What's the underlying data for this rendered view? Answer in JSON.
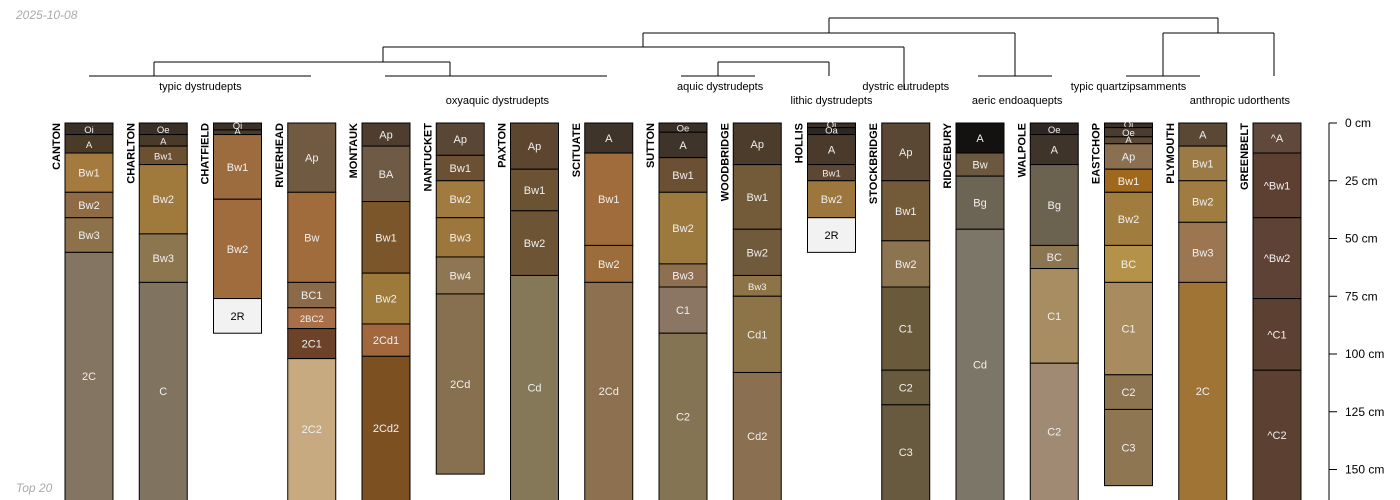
{
  "header": {
    "date": "2025-10-08"
  },
  "footer": {
    "label": "Top 20"
  },
  "colors": {
    "line": "#000000",
    "light_text": "#f0f0f0",
    "dark_text": "#000000"
  },
  "chart_data": {
    "type": "soil-profile-sketch",
    "depth_units": "cm",
    "depth_axis": {
      "max": 165,
      "ticks": [
        0,
        25,
        50,
        75,
        100,
        125,
        150
      ],
      "labels": [
        "0 cm",
        "25 cm",
        "50 cm",
        "75 cm",
        "100 cm",
        "125 cm",
        "150 cm"
      ]
    },
    "groups": [
      {
        "label": "typic dystrudepts",
        "profiles": [
          "CANTON",
          "CHARLTON",
          "CHATFIELD",
          "RIVERHEAD"
        ]
      },
      {
        "label": "oxyaquic dystrudepts",
        "profiles": [
          "MONTAUK",
          "NANTUCKET",
          "PAXTON",
          "SCITUATE"
        ]
      },
      {
        "label": "aquic dystrudepts",
        "profiles": [
          "SUTTON",
          "WOODBRIDGE"
        ]
      },
      {
        "label": "lithic dystrudepts",
        "profiles": [
          "HOLLIS"
        ]
      },
      {
        "label": "dystric eutrudepts",
        "profiles": [
          "STOCKBRIDGE"
        ]
      },
      {
        "label": "aeric endoaquepts",
        "profiles": [
          "RIDGEBURY",
          "WALPOLE"
        ]
      },
      {
        "label": "typic quartzipsamments",
        "profiles": [
          "EASTCHOP"
        ]
      },
      {
        "label": "anthropic udorthents",
        "profiles": [
          "PLYMOUTH",
          "GREENBELT"
        ]
      }
    ],
    "profiles": [
      {
        "name": "CANTON",
        "horizons": [
          {
            "name": "Oi",
            "top": 0,
            "bottom": 5,
            "color": "#3a3028"
          },
          {
            "name": "A",
            "top": 5,
            "bottom": 13,
            "color": "#4a3a28"
          },
          {
            "name": "Bw1",
            "top": 13,
            "bottom": 30,
            "color": "#a57a3e"
          },
          {
            "name": "Bw2",
            "top": 30,
            "bottom": 41,
            "color": "#8e6a45"
          },
          {
            "name": "Bw3",
            "top": 41,
            "bottom": 56,
            "color": "#8c714b"
          },
          {
            "name": "2C",
            "top": 56,
            "bottom": 165,
            "color": "#847462"
          }
        ]
      },
      {
        "name": "CHARLTON",
        "horizons": [
          {
            "name": "Oe",
            "top": 0,
            "bottom": 5,
            "color": "#3a3028"
          },
          {
            "name": "A",
            "top": 5,
            "bottom": 10,
            "color": "#4a3a28"
          },
          {
            "name": "Bw1",
            "top": 10,
            "bottom": 18,
            "color": "#6c5032"
          },
          {
            "name": "Bw2",
            "top": 18,
            "bottom": 48,
            "color": "#a07a3c"
          },
          {
            "name": "Bw3",
            "top": 48,
            "bottom": 69,
            "color": "#8c7650"
          },
          {
            "name": "C",
            "top": 69,
            "bottom": 165,
            "color": "#807460"
          }
        ]
      },
      {
        "name": "CHATFIELD",
        "horizons": [
          {
            "name": "Oi",
            "top": 0,
            "bottom": 3,
            "color": "#3a3028"
          },
          {
            "name": "A",
            "top": 3,
            "bottom": 5,
            "color": "#4a3a28"
          },
          {
            "name": "Bw1",
            "top": 5,
            "bottom": 33,
            "color": "#9c6c3e"
          },
          {
            "name": "Bw2",
            "top": 33,
            "bottom": 76,
            "color": "#a06c3e"
          },
          {
            "name": "2R",
            "top": 76,
            "bottom": 91,
            "color": "#f2f2f2"
          }
        ]
      },
      {
        "name": "RIVERHEAD",
        "horizons": [
          {
            "name": "Ap",
            "top": 0,
            "bottom": 30,
            "color": "#705a42"
          },
          {
            "name": "Bw",
            "top": 30,
            "bottom": 69,
            "color": "#a06c3c"
          },
          {
            "name": "BC1",
            "top": 69,
            "bottom": 80,
            "color": "#8a6a48"
          },
          {
            "name": "2BC2",
            "top": 80,
            "bottom": 89,
            "color": "#a87048"
          },
          {
            "name": "2C1",
            "top": 89,
            "bottom": 102,
            "color": "#6c4228"
          },
          {
            "name": "2C2",
            "top": 102,
            "bottom": 165,
            "color": "#c8aa80"
          }
        ]
      },
      {
        "name": "MONTAUK",
        "horizons": [
          {
            "name": "Ap",
            "top": 0,
            "bottom": 10,
            "color": "#4f3e30"
          },
          {
            "name": "BA",
            "top": 10,
            "bottom": 34,
            "color": "#6e5a45"
          },
          {
            "name": "Bw1",
            "top": 34,
            "bottom": 65,
            "color": "#7a562a"
          },
          {
            "name": "Bw2",
            "top": 65,
            "bottom": 87,
            "color": "#9e7a3a"
          },
          {
            "name": "2Cd1",
            "top": 87,
            "bottom": 101,
            "color": "#a0683c"
          },
          {
            "name": "2Cd2",
            "top": 101,
            "bottom": 165,
            "color": "#7c5020"
          }
        ]
      },
      {
        "name": "NANTUCKET",
        "horizons": [
          {
            "name": "Ap",
            "top": 0,
            "bottom": 14,
            "color": "#5a4634"
          },
          {
            "name": "Bw1",
            "top": 14,
            "bottom": 25,
            "color": "#6c5034"
          },
          {
            "name": "Bw2",
            "top": 25,
            "bottom": 41,
            "color": "#a07a3e"
          },
          {
            "name": "Bw3",
            "top": 41,
            "bottom": 58,
            "color": "#9c763a"
          },
          {
            "name": "Bw4",
            "top": 58,
            "bottom": 74,
            "color": "#8e7652"
          },
          {
            "name": "2Cd",
            "top": 74,
            "bottom": 152,
            "color": "#867050"
          }
        ]
      },
      {
        "name": "PAXTON",
        "horizons": [
          {
            "name": "Ap",
            "top": 0,
            "bottom": 20,
            "color": "#5c4630"
          },
          {
            "name": "Bw1",
            "top": 20,
            "bottom": 38,
            "color": "#6a5232"
          },
          {
            "name": "Bw2",
            "top": 38,
            "bottom": 66,
            "color": "#6c5434"
          },
          {
            "name": "Cd",
            "top": 66,
            "bottom": 165,
            "color": "#857858"
          }
        ]
      },
      {
        "name": "SCITUATE",
        "horizons": [
          {
            "name": "A",
            "top": 0,
            "bottom": 13,
            "color": "#3e342a"
          },
          {
            "name": "Bw1",
            "top": 13,
            "bottom": 53,
            "color": "#a06c3c"
          },
          {
            "name": "Bw2",
            "top": 53,
            "bottom": 69,
            "color": "#9c6c3a"
          },
          {
            "name": "2Cd",
            "top": 69,
            "bottom": 165,
            "color": "#8c7050"
          }
        ]
      },
      {
        "name": "SUTTON",
        "horizons": [
          {
            "name": "Oe",
            "top": 0,
            "bottom": 4,
            "color": "#3a3028"
          },
          {
            "name": "A",
            "top": 4,
            "bottom": 15,
            "color": "#3e342a"
          },
          {
            "name": "Bw1",
            "top": 15,
            "bottom": 30,
            "color": "#6c5034"
          },
          {
            "name": "Bw2",
            "top": 30,
            "bottom": 61,
            "color": "#9c7a3e"
          },
          {
            "name": "Bw3",
            "top": 61,
            "bottom": 71,
            "color": "#8e7050"
          },
          {
            "name": "C1",
            "top": 71,
            "bottom": 91,
            "color": "#8a7662"
          },
          {
            "name": "C2",
            "top": 91,
            "bottom": 165,
            "color": "#857454"
          }
        ]
      },
      {
        "name": "WOODBRIDGE",
        "horizons": [
          {
            "name": "Ap",
            "top": 0,
            "bottom": 18,
            "color": "#4c3c2c"
          },
          {
            "name": "Bw1",
            "top": 18,
            "bottom": 46,
            "color": "#735a38"
          },
          {
            "name": "Bw2",
            "top": 46,
            "bottom": 66,
            "color": "#705a3c"
          },
          {
            "name": "Bw3",
            "top": 66,
            "bottom": 75,
            "color": "#8c7448"
          },
          {
            "name": "Cd1",
            "top": 75,
            "bottom": 108,
            "color": "#8c7448"
          },
          {
            "name": "Cd2",
            "top": 108,
            "bottom": 165,
            "color": "#8a7050"
          }
        ]
      },
      {
        "name": "HOLLIS",
        "horizons": [
          {
            "name": "Oi",
            "top": 0,
            "bottom": 2,
            "color": "#3a3028"
          },
          {
            "name": "Oa",
            "top": 2,
            "bottom": 5,
            "color": "#2e2620"
          },
          {
            "name": "A",
            "top": 5,
            "bottom": 18,
            "color": "#4a3a2c"
          },
          {
            "name": "Bw1",
            "top": 18,
            "bottom": 25,
            "color": "#5c4634"
          },
          {
            "name": "Bw2",
            "top": 25,
            "bottom": 41,
            "color": "#9c763c"
          },
          {
            "name": "2R",
            "top": 41,
            "bottom": 56,
            "color": "#f2f2f2"
          }
        ]
      },
      {
        "name": "STOCKBRIDGE",
        "horizons": [
          {
            "name": "Ap",
            "top": 0,
            "bottom": 25,
            "color": "#5a4834"
          },
          {
            "name": "Bw1",
            "top": 25,
            "bottom": 51,
            "color": "#735a38"
          },
          {
            "name": "Bw2",
            "top": 51,
            "bottom": 71,
            "color": "#8c7450"
          },
          {
            "name": "C1",
            "top": 71,
            "bottom": 107,
            "color": "#6a5a3c"
          },
          {
            "name": "C2",
            "top": 107,
            "bottom": 122,
            "color": "#685a3c"
          },
          {
            "name": "C3",
            "top": 122,
            "bottom": 165,
            "color": "#685a3e"
          }
        ]
      },
      {
        "name": "RIDGEBURY",
        "horizons": [
          {
            "name": "A",
            "top": 0,
            "bottom": 13,
            "color": "#141210"
          },
          {
            "name": "Bw",
            "top": 13,
            "bottom": 23,
            "color": "#6c5840"
          },
          {
            "name": "Bg",
            "top": 23,
            "bottom": 46,
            "color": "#6c6454"
          },
          {
            "name": "Cd",
            "top": 46,
            "bottom": 165,
            "color": "#7c7668"
          }
        ]
      },
      {
        "name": "WALPOLE",
        "horizons": [
          {
            "name": "Oe",
            "top": 0,
            "bottom": 5,
            "color": "#2e2620"
          },
          {
            "name": "A",
            "top": 5,
            "bottom": 18,
            "color": "#3e342a"
          },
          {
            "name": "Bg",
            "top": 18,
            "bottom": 53,
            "color": "#6c6250"
          },
          {
            "name": "BC",
            "top": 53,
            "bottom": 63,
            "color": "#8c7652"
          },
          {
            "name": "C1",
            "top": 63,
            "bottom": 104,
            "color": "#a88c62"
          },
          {
            "name": "C2",
            "top": 104,
            "bottom": 165,
            "color": "#a08a74"
          }
        ]
      },
      {
        "name": "EASTCHOP",
        "horizons": [
          {
            "name": "Oi",
            "top": 0,
            "bottom": 2,
            "color": "#3a3028"
          },
          {
            "name": "Oe",
            "top": 2,
            "bottom": 6,
            "color": "#4a3c2e"
          },
          {
            "name": "A",
            "top": 6,
            "bottom": 9,
            "color": "#5c4a36"
          },
          {
            "name": "Ap",
            "top": 9,
            "bottom": 20,
            "color": "#8a7050"
          },
          {
            "name": "Bw1",
            "top": 20,
            "bottom": 30,
            "color": "#a0681c"
          },
          {
            "name": "Bw2",
            "top": 30,
            "bottom": 53,
            "color": "#a07c3e"
          },
          {
            "name": "BC",
            "top": 53,
            "bottom": 69,
            "color": "#b4924a"
          },
          {
            "name": "C1",
            "top": 69,
            "bottom": 109,
            "color": "#a88c60"
          },
          {
            "name": "C2",
            "top": 109,
            "bottom": 124,
            "color": "#8c7450"
          },
          {
            "name": "C3",
            "top": 124,
            "bottom": 157,
            "color": "#8e7652"
          }
        ]
      },
      {
        "name": "PLYMOUTH",
        "horizons": [
          {
            "name": "A",
            "top": 0,
            "bottom": 10,
            "color": "#5a4834"
          },
          {
            "name": "Bw1",
            "top": 10,
            "bottom": 25,
            "color": "#9c7a46"
          },
          {
            "name": "Bw2",
            "top": 25,
            "bottom": 43,
            "color": "#a07c40"
          },
          {
            "name": "Bw3",
            "top": 43,
            "bottom": 69,
            "color": "#9c7650"
          },
          {
            "name": "2C",
            "top": 69,
            "bottom": 165,
            "color": "#a07434"
          }
        ]
      },
      {
        "name": "GREENBELT",
        "horizons": [
          {
            "name": "^A",
            "top": 0,
            "bottom": 13,
            "color": "#60483c"
          },
          {
            "name": "^Bw1",
            "top": 13,
            "bottom": 41,
            "color": "#5e4032"
          },
          {
            "name": "^Bw2",
            "top": 41,
            "bottom": 76,
            "color": "#5e4236"
          },
          {
            "name": "^C1",
            "top": 76,
            "bottom": 107,
            "color": "#5c4032"
          },
          {
            "name": "^C2",
            "top": 107,
            "bottom": 165,
            "color": "#5c4032"
          }
        ]
      }
    ]
  }
}
